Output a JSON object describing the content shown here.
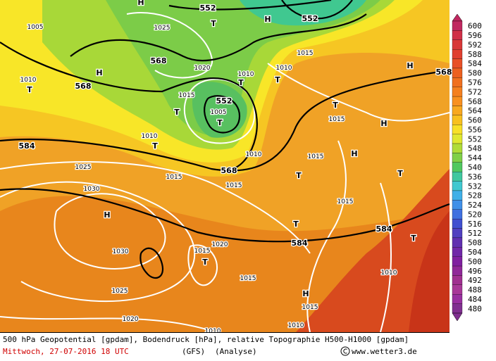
{
  "legend": {
    "ticks": [
      600,
      596,
      592,
      588,
      584,
      580,
      576,
      572,
      568,
      564,
      560,
      556,
      552,
      548,
      544,
      540,
      536,
      532,
      528,
      524,
      520,
      516,
      512,
      508,
      504,
      500,
      496,
      492,
      488,
      484,
      480
    ]
  },
  "map": {
    "labels": [
      "552",
      "552",
      "552",
      "568",
      "568",
      "568",
      "568",
      "584",
      "584",
      "584",
      "1005",
      "1025",
      "1015",
      "1020",
      "1010",
      "1010",
      "1015",
      "1005",
      "1010",
      "1010",
      "1010",
      "1015",
      "1015",
      "1025",
      "1015",
      "1015",
      "1030",
      "1015",
      "1020",
      "1015",
      "1030",
      "1015",
      "1010",
      "1025",
      "1015",
      "1020",
      "1010",
      "1010",
      "H",
      "H",
      "H",
      "H",
      "H",
      "H",
      "H",
      "H",
      "T",
      "T",
      "T",
      "T",
      "T",
      "T",
      "T",
      "T",
      "T",
      "T",
      "T",
      "T",
      "T"
    ]
  },
  "footer": {
    "description": "500 hPa Geopotential [gpdam], Bodendruck [hPa], relative Topographie H500-H1000 [gpdam]",
    "date": "Mittwoch, 27-07-2016  18 UTC",
    "model": "(GFS)",
    "mode": "(Analyse)",
    "credit": "www.wetter3.de"
  }
}
